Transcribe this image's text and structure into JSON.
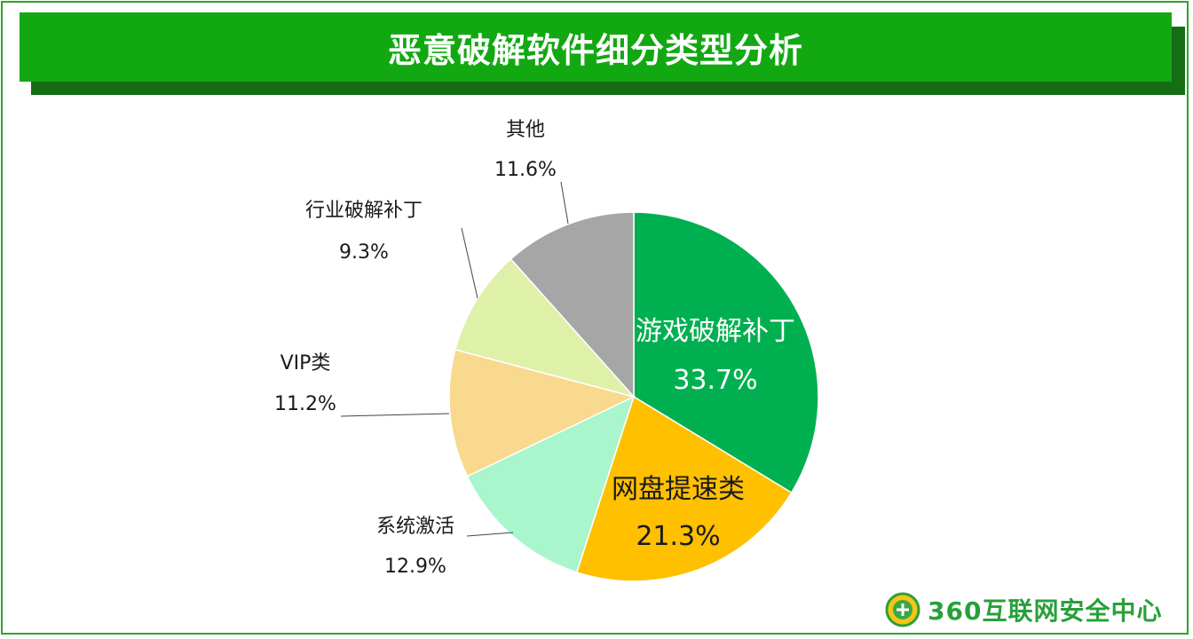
{
  "title": "恶意破解软件细分类型分析",
  "chart_data": {
    "type": "pie",
    "title": "恶意破解软件细分类型分析",
    "slices": [
      {
        "label": "游戏破解补丁",
        "value": 33.7,
        "value_text": "33.7%",
        "color": "#00b050",
        "label_color": "#ffffff"
      },
      {
        "label": "网盘提速类",
        "value": 21.3,
        "value_text": "21.3%",
        "color": "#ffc000",
        "label_color": "#1a1a1a"
      },
      {
        "label": "系统激活",
        "value": 12.9,
        "value_text": "12.9%",
        "color": "#a9f5cc",
        "label_color": "#1a1a1a"
      },
      {
        "label": "VIP类",
        "value": 11.2,
        "value_text": "11.2%",
        "color": "#f8d98e",
        "label_color": "#1a1a1a"
      },
      {
        "label": "行业破解补丁",
        "value": 9.3,
        "value_text": "9.3%",
        "color": "#dff0a8",
        "label_color": "#1a1a1a"
      },
      {
        "label": "其他",
        "value": 11.6,
        "value_text": "11.6%",
        "color": "#a6a6a6",
        "label_color": "#1a1a1a"
      }
    ]
  },
  "logo": {
    "text": "360互联网安全中心",
    "color": "#28a03a"
  }
}
